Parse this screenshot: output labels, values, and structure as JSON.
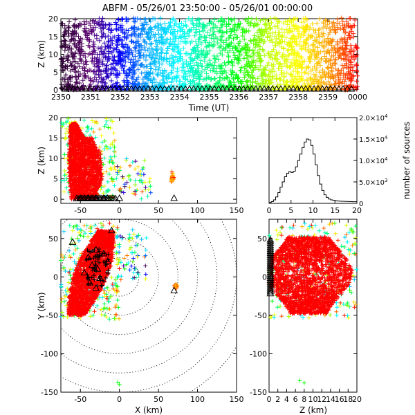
{
  "chart_data": [
    {
      "id": "time-height",
      "type": "scatter",
      "title": "ABFM - 05/26/01 23:50:00 - 05/26/01 00:00:00",
      "xlabel": "Time (UT)",
      "ylabel": "Z (km)",
      "xlim": [
        2350,
        2400
      ],
      "ylim": [
        0,
        20
      ],
      "xticks": [
        "2350",
        "2351",
        "2352",
        "2353",
        "2354",
        "2355",
        "2356",
        "2357",
        "2358",
        "2359",
        "0000"
      ],
      "yticks": [
        0,
        5,
        10,
        15,
        20
      ],
      "color_by": "time",
      "colormap": [
        "#2a0030",
        "#5a0070",
        "#0000ff",
        "#00b0ff",
        "#00ffff",
        "#00ff80",
        "#00ff00",
        "#c0ff00",
        "#ffff00",
        "#ffa000",
        "#ff0000"
      ],
      "main_band_z": [
        1,
        18
      ]
    },
    {
      "id": "x-z",
      "type": "scatter",
      "xlabel": "",
      "ylabel": "Z (km)",
      "xlim": [
        -75,
        150
      ],
      "ylim": [
        -1,
        20
      ],
      "xticks": [
        -50,
        0,
        50,
        100,
        150
      ],
      "yticks": [
        0,
        5,
        10,
        15,
        20
      ],
      "station_markers_x": [
        -50,
        -45,
        -40,
        -35,
        -30,
        -25,
        -20,
        -15,
        0,
        70
      ]
    },
    {
      "id": "altitude-histogram",
      "type": "line",
      "xlabel": "",
      "ylabel": "number of sources",
      "xlim": [
        0,
        20
      ],
      "ylim": [
        0,
        20000
      ],
      "xticks": [
        0,
        5,
        10,
        15,
        20
      ],
      "yticks_exp": [
        {
          "v": 0,
          "m": "0",
          "e": ""
        },
        {
          "v": 5000,
          "m": "5.0×10",
          "e": "3"
        },
        {
          "v": 10000,
          "m": "1.0×10",
          "e": "4"
        },
        {
          "v": 15000,
          "m": "1.5×10",
          "e": "4"
        },
        {
          "v": 20000,
          "m": "2.0×10",
          "e": "4"
        }
      ],
      "z": [
        0.25,
        0.75,
        1.25,
        1.75,
        2.25,
        2.75,
        3.25,
        3.75,
        4.25,
        4.75,
        5.25,
        5.75,
        6.25,
        6.75,
        7.25,
        7.75,
        8.25,
        8.75,
        9.25,
        9.75,
        10.25,
        10.75,
        11.25,
        11.75,
        12.25,
        12.75,
        13.25,
        13.75,
        14.25,
        14.75,
        15.25,
        15.75,
        16.25,
        16.75,
        17.25,
        17.75,
        18.25,
        18.75,
        19.25,
        19.75
      ],
      "counts": [
        200,
        400,
        800,
        1500,
        2500,
        3800,
        5000,
        6200,
        7000,
        7400,
        7200,
        7500,
        8500,
        10000,
        11500,
        13000,
        14300,
        15000,
        14800,
        13500,
        11500,
        9000,
        6500,
        4500,
        3000,
        2000,
        1400,
        1000,
        800,
        700,
        600,
        550,
        500,
        480,
        460,
        440,
        420,
        400,
        390,
        380
      ]
    },
    {
      "id": "plan-view",
      "type": "scatter",
      "xlabel": "X (km)",
      "ylabel": "Y (km)",
      "xlim": [
        -75,
        150
      ],
      "ylim": [
        -150,
        75
      ],
      "xticks": [
        -50,
        0,
        50,
        100,
        150
      ],
      "yticks": [
        -150,
        -100,
        -50,
        0,
        50
      ],
      "range_rings_km": [
        25,
        50,
        75,
        100,
        125,
        150,
        175
      ],
      "ring_center": [
        0,
        0
      ],
      "stations": [
        [
          -30,
          35
        ],
        [
          -20,
          30
        ],
        [
          -40,
          25
        ],
        [
          -35,
          15
        ],
        [
          -28,
          10
        ],
        [
          -45,
          5
        ],
        [
          -25,
          -2
        ],
        [
          -38,
          -8
        ],
        [
          -30,
          -15
        ],
        [
          -15,
          20
        ],
        [
          -10,
          60
        ],
        [
          70,
          -18
        ],
        [
          -60,
          45
        ]
      ]
    },
    {
      "id": "z-y",
      "type": "scatter",
      "xlabel": "Z (km)",
      "ylabel": "",
      "xlim": [
        0,
        20
      ],
      "ylim": [
        -150,
        75
      ],
      "xticks": [
        0,
        2,
        4,
        6,
        8,
        10,
        12,
        14,
        16,
        18,
        20
      ],
      "yticks": [
        -150,
        -100,
        -50,
        0,
        50
      ],
      "station_markers_y": [
        45,
        40,
        35,
        30,
        25,
        20,
        15,
        10,
        5,
        0,
        -5,
        -10,
        -15,
        -20
      ]
    }
  ]
}
